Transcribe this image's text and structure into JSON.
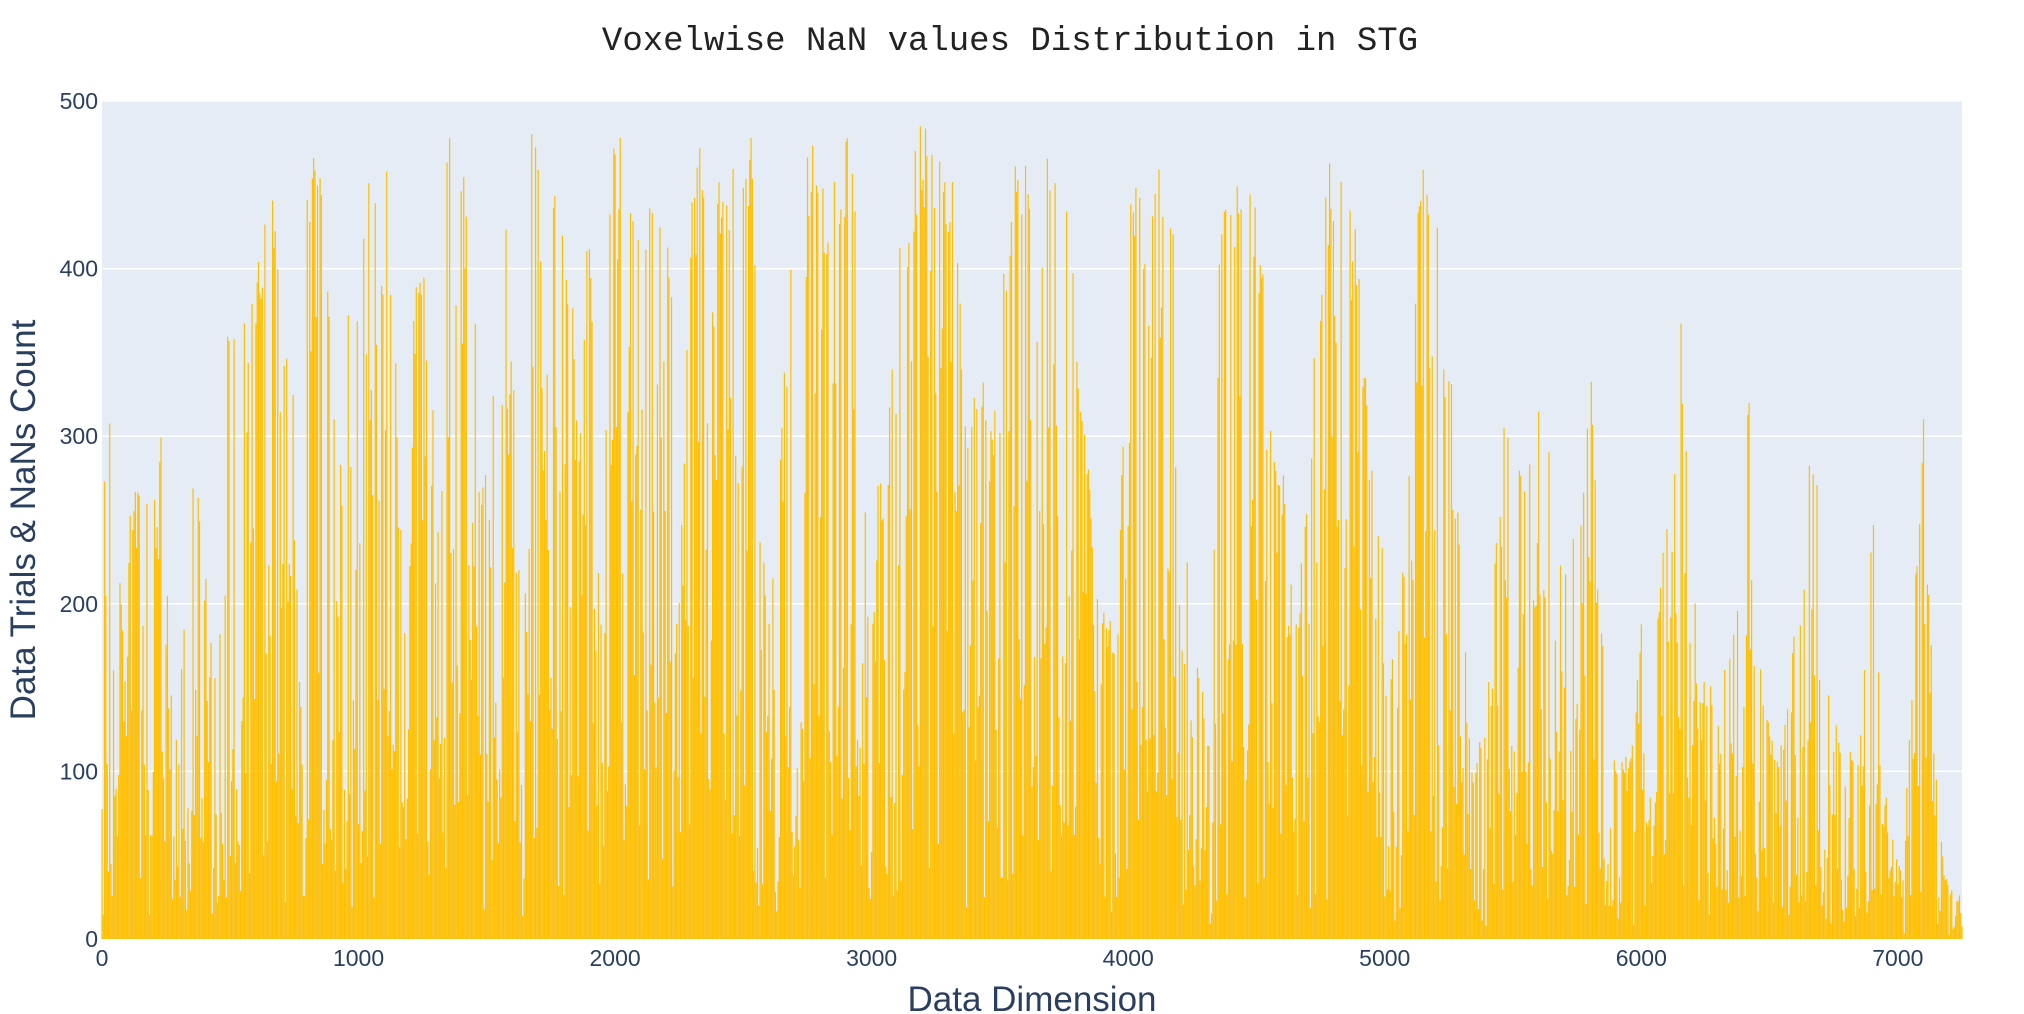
{
  "chart_data": {
    "type": "bar",
    "title": "Voxelwise NaN values Distribution in STG",
    "xlabel": "Data Dimension",
    "ylabel": "Data Trials & NaNs Count",
    "xlim": [
      0,
      7250
    ],
    "ylim": [
      0,
      500
    ],
    "xticks": [
      0,
      1000,
      2000,
      3000,
      4000,
      5000,
      6000,
      7000
    ],
    "yticks": [
      0,
      100,
      200,
      300,
      400,
      500
    ],
    "grid": true,
    "legend": "none",
    "bar_color": "#FFBF00",
    "plot_bg": "#E5ECF6",
    "grid_color": "#ffffff",
    "text_color": "#2a3f5f",
    "envelope": [
      [
        0,
        260
      ],
      [
        30,
        330
      ],
      [
        60,
        210
      ],
      [
        100,
        245
      ],
      [
        140,
        280
      ],
      [
        200,
        275
      ],
      [
        240,
        330
      ],
      [
        280,
        105
      ],
      [
        330,
        205
      ],
      [
        370,
        325
      ],
      [
        420,
        190
      ],
      [
        470,
        280
      ],
      [
        490,
        400
      ],
      [
        520,
        350
      ],
      [
        560,
        370
      ],
      [
        620,
        425
      ],
      [
        660,
        488
      ],
      [
        700,
        360
      ],
      [
        760,
        365
      ],
      [
        820,
        488
      ],
      [
        860,
        460
      ],
      [
        920,
        300
      ],
      [
        960,
        375
      ],
      [
        1000,
        385
      ],
      [
        1040,
        488
      ],
      [
        1090,
        488
      ],
      [
        1120,
        455
      ],
      [
        1170,
        255
      ],
      [
        1210,
        365
      ],
      [
        1240,
        425
      ],
      [
        1290,
        345
      ],
      [
        1320,
        230
      ],
      [
        1340,
        488
      ],
      [
        1400,
        488
      ],
      [
        1440,
        455
      ],
      [
        1480,
        280
      ],
      [
        1520,
        340
      ],
      [
        1570,
        440
      ],
      [
        1610,
        330
      ],
      [
        1640,
        130
      ],
      [
        1660,
        488
      ],
      [
        1720,
        488
      ],
      [
        1760,
        455
      ],
      [
        1820,
        445
      ],
      [
        1860,
        300
      ],
      [
        1900,
        450
      ],
      [
        1950,
        160
      ],
      [
        1980,
        460
      ],
      [
        2000,
        488
      ],
      [
        2050,
        475
      ],
      [
        2110,
        460
      ],
      [
        2160,
        430
      ],
      [
        2200,
        470
      ],
      [
        2230,
        400
      ],
      [
        2260,
        250
      ],
      [
        2300,
        488
      ],
      [
        2340,
        470
      ],
      [
        2400,
        455
      ],
      [
        2440,
        460
      ],
      [
        2500,
        480
      ],
      [
        2540,
        480
      ],
      [
        2560,
        250
      ],
      [
        2600,
        200
      ],
      [
        2640,
        295
      ],
      [
        2680,
        400
      ],
      [
        2720,
        480
      ],
      [
        2780,
        488
      ],
      [
        2830,
        440
      ],
      [
        2880,
        470
      ],
      [
        2930,
        488
      ],
      [
        2960,
        280
      ],
      [
        3000,
        270
      ],
      [
        3060,
        285
      ],
      [
        3100,
        430
      ],
      [
        3140,
        440
      ],
      [
        3180,
        488
      ],
      [
        3230,
        488
      ],
      [
        3280,
        470
      ],
      [
        3330,
        445
      ],
      [
        3370,
        320
      ],
      [
        3420,
        365
      ],
      [
        3460,
        280
      ],
      [
        3490,
        420
      ],
      [
        3530,
        440
      ],
      [
        3580,
        488
      ],
      [
        3640,
        488
      ],
      [
        3700,
        470
      ],
      [
        3740,
        470
      ],
      [
        3780,
        440
      ],
      [
        3820,
        330
      ],
      [
        3860,
        255
      ],
      [
        3900,
        200
      ],
      [
        3960,
        185
      ],
      [
        4000,
        470
      ],
      [
        4060,
        440
      ],
      [
        4110,
        465
      ],
      [
        4160,
        470
      ],
      [
        4200,
        345
      ],
      [
        4240,
        190
      ],
      [
        4280,
        170
      ],
      [
        4320,
        110
      ],
      [
        4360,
        455
      ],
      [
        4420,
        450
      ],
      [
        4480,
        460
      ],
      [
        4520,
        420
      ],
      [
        4560,
        300
      ],
      [
        4600,
        300
      ],
      [
        4650,
        185
      ],
      [
        4700,
        265
      ],
      [
        4760,
        470
      ],
      [
        4800,
        465
      ],
      [
        4860,
        465
      ],
      [
        4900,
        400
      ],
      [
        4940,
        310
      ],
      [
        4980,
        250
      ],
      [
        5020,
        200
      ],
      [
        5060,
        200
      ],
      [
        5100,
        300
      ],
      [
        5140,
        480
      ],
      [
        5180,
        470
      ],
      [
        5220,
        420
      ],
      [
        5260,
        360
      ],
      [
        5300,
        235
      ],
      [
        5340,
        100
      ],
      [
        5400,
        140
      ],
      [
        5460,
        340
      ],
      [
        5520,
        290
      ],
      [
        5580,
        290
      ],
      [
        5620,
        375
      ],
      [
        5660,
        250
      ],
      [
        5700,
        220
      ],
      [
        5760,
        260
      ],
      [
        5800,
        370
      ],
      [
        5840,
        210
      ],
      [
        5880,
        110
      ],
      [
        5920,
        110
      ],
      [
        5960,
        110
      ],
      [
        6000,
        195
      ],
      [
        6040,
        110
      ],
      [
        6080,
        250
      ],
      [
        6120,
        250
      ],
      [
        6150,
        385
      ],
      [
        6180,
        300
      ],
      [
        6230,
        160
      ],
      [
        6280,
        150
      ],
      [
        6330,
        175
      ],
      [
        6380,
        225
      ],
      [
        6420,
        330
      ],
      [
        6460,
        170
      ],
      [
        6500,
        125
      ],
      [
        6540,
        115
      ],
      [
        6600,
        190
      ],
      [
        6640,
        235
      ],
      [
        6660,
        365
      ],
      [
        6700,
        230
      ],
      [
        6740,
        135
      ],
      [
        6800,
        120
      ],
      [
        6850,
        110
      ],
      [
        6900,
        270
      ],
      [
        6940,
        100
      ],
      [
        6980,
        60
      ],
      [
        7020,
        35
      ],
      [
        7060,
        190
      ],
      [
        7100,
        330
      ],
      [
        7140,
        125
      ],
      [
        7180,
        40
      ],
      [
        7220,
        30
      ],
      [
        7250,
        25
      ]
    ]
  }
}
